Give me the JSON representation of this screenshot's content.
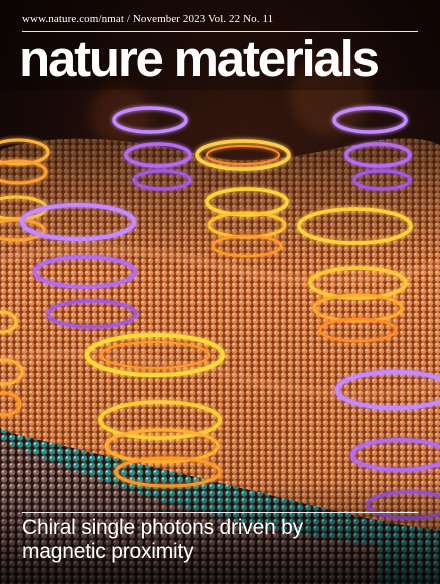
{
  "masthead": {
    "issue_line": "www.nature.com/nmat / November 2023 Vol. 22 No. 11",
    "title": "nature materials"
  },
  "cover_story": {
    "line1": "Chiral single photons driven by",
    "line2": "magnetic proximity"
  },
  "palette": {
    "background": "#0b0605",
    "lattice_orange": "#d9733a",
    "glow_yellow": "#ffd23a",
    "glow_purple": "#b46cf0",
    "atom_teal": "#2f8a86",
    "text": "#ffffff"
  }
}
